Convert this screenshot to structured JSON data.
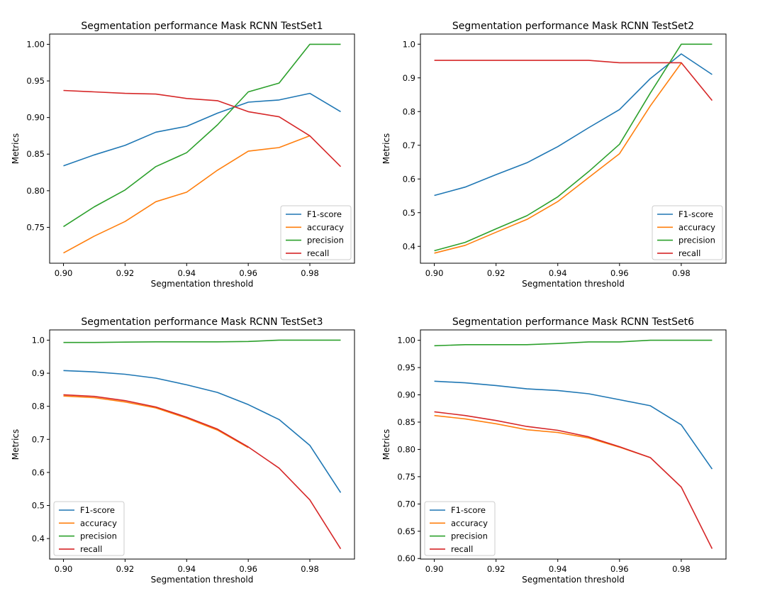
{
  "chart_data": [
    {
      "type": "line",
      "title": "Segmentation performance Mask RCNN TestSet1",
      "xlabel": "Segmentation threshold",
      "ylabel": "Metrics",
      "x": [
        0.9,
        0.91,
        0.92,
        0.93,
        0.94,
        0.95,
        0.96,
        0.97,
        0.98,
        0.99
      ],
      "xticks": [
        "0.90",
        "0.92",
        "0.94",
        "0.96",
        "0.98"
      ],
      "yticks": [
        "0.75",
        "0.80",
        "0.85",
        "0.90",
        "0.95",
        "1.00"
      ],
      "ylim": [
        0.701,
        1.014
      ],
      "legend_position": "lower-right",
      "series": [
        {
          "name": "F1-score",
          "color": "#1f77b4",
          "values": [
            0.834,
            0.849,
            0.862,
            0.88,
            0.888,
            0.906,
            0.921,
            0.924,
            0.933,
            0.908
          ]
        },
        {
          "name": "accuracy",
          "color": "#ff7f0e",
          "values": [
            0.715,
            0.738,
            0.758,
            0.785,
            0.798,
            0.828,
            0.854,
            0.859,
            0.875,
            null
          ]
        },
        {
          "name": "precision",
          "color": "#2ca02c",
          "values": [
            0.751,
            0.778,
            0.801,
            0.833,
            0.852,
            0.89,
            0.935,
            0.947,
            1.0,
            1.0
          ]
        },
        {
          "name": "recall",
          "color": "#d62728",
          "values": [
            0.937,
            0.935,
            0.933,
            0.932,
            0.926,
            0.923,
            0.908,
            0.901,
            0.875,
            0.833
          ]
        }
      ]
    },
    {
      "type": "line",
      "title": "Segmentation performance Mask RCNN TestSet2",
      "xlabel": "Segmentation threshold",
      "ylabel": "Metrics",
      "x": [
        0.9,
        0.91,
        0.92,
        0.93,
        0.94,
        0.95,
        0.96,
        0.97,
        0.98,
        0.99
      ],
      "xticks": [
        "0.90",
        "0.92",
        "0.94",
        "0.96",
        "0.98"
      ],
      "yticks": [
        "0.4",
        "0.5",
        "0.6",
        "0.7",
        "0.8",
        "0.9",
        "1.0"
      ],
      "ylim": [
        0.35,
        1.03
      ],
      "legend_position": "lower-right",
      "series": [
        {
          "name": "F1-score",
          "color": "#1f77b4",
          "values": [
            0.551,
            0.576,
            0.613,
            0.648,
            0.696,
            0.752,
            0.806,
            0.898,
            0.971,
            0.91
          ]
        },
        {
          "name": "accuracy",
          "color": "#ff7f0e",
          "values": [
            0.38,
            0.403,
            0.442,
            0.48,
            0.533,
            0.604,
            0.675,
            0.817,
            0.944,
            null
          ]
        },
        {
          "name": "precision",
          "color": "#2ca02c",
          "values": [
            0.387,
            0.412,
            0.452,
            0.491,
            0.547,
            0.622,
            0.703,
            0.855,
            1.0,
            1.0
          ]
        },
        {
          "name": "recall",
          "color": "#d62728",
          "values": [
            0.952,
            0.952,
            0.952,
            0.952,
            0.952,
            0.952,
            0.945,
            0.945,
            0.945,
            0.833
          ]
        }
      ]
    },
    {
      "type": "line",
      "title": "Segmentation performance Mask RCNN TestSet3",
      "xlabel": "Segmentation threshold",
      "ylabel": "Metrics",
      "x": [
        0.9,
        0.91,
        0.92,
        0.93,
        0.94,
        0.95,
        0.96,
        0.97,
        0.98,
        0.99
      ],
      "xticks": [
        "0.90",
        "0.92",
        "0.94",
        "0.96",
        "0.98"
      ],
      "yticks": [
        "0.4",
        "0.5",
        "0.6",
        "0.7",
        "0.8",
        "0.9",
        "1.0"
      ],
      "ylim": [
        0.338,
        1.031
      ],
      "legend_position": "lower-left",
      "series": [
        {
          "name": "F1-score",
          "color": "#1f77b4",
          "values": [
            0.908,
            0.904,
            0.897,
            0.885,
            0.865,
            0.842,
            0.805,
            0.76,
            0.682,
            0.539
          ]
        },
        {
          "name": "accuracy",
          "color": "#ff7f0e",
          "values": [
            0.831,
            0.826,
            0.813,
            0.795,
            0.764,
            0.728,
            0.675,
            null,
            null,
            null
          ]
        },
        {
          "name": "precision",
          "color": "#2ca02c",
          "values": [
            0.993,
            0.993,
            0.994,
            0.995,
            0.995,
            0.995,
            0.996,
            1.0,
            1.0,
            1.0
          ]
        },
        {
          "name": "recall",
          "color": "#d62728",
          "values": [
            0.835,
            0.83,
            0.817,
            0.798,
            0.767,
            0.731,
            0.677,
            0.613,
            0.517,
            0.369
          ]
        }
      ]
    },
    {
      "type": "line",
      "title": "Segmentation performance Mask RCNN TestSet6",
      "xlabel": "Segmentation threshold",
      "ylabel": "Metrics",
      "x": [
        0.9,
        0.91,
        0.92,
        0.93,
        0.94,
        0.95,
        0.96,
        0.97,
        0.98,
        0.99
      ],
      "xticks": [
        "0.90",
        "0.92",
        "0.94",
        "0.96",
        "0.98"
      ],
      "yticks": [
        "0.60",
        "0.65",
        "0.70",
        "0.75",
        "0.80",
        "0.85",
        "0.90",
        "0.95",
        "1.00"
      ],
      "ylim": [
        0.599,
        1.019
      ],
      "legend_position": "lower-left",
      "series": [
        {
          "name": "F1-score",
          "color": "#1f77b4",
          "values": [
            0.925,
            0.922,
            0.917,
            0.911,
            0.908,
            0.902,
            0.891,
            0.88,
            0.845,
            0.764
          ]
        },
        {
          "name": "accuracy",
          "color": "#ff7f0e",
          "values": [
            0.862,
            0.856,
            0.847,
            0.836,
            0.831,
            0.821,
            0.804,
            0.785,
            null,
            null
          ]
        },
        {
          "name": "precision",
          "color": "#2ca02c",
          "values": [
            0.99,
            0.992,
            0.992,
            0.992,
            0.994,
            0.997,
            0.997,
            1.0,
            1.0,
            1.0
          ]
        },
        {
          "name": "recall",
          "color": "#d62728",
          "values": [
            0.869,
            0.862,
            0.853,
            0.842,
            0.835,
            0.823,
            0.805,
            0.785,
            0.731,
            0.618
          ]
        }
      ]
    }
  ]
}
